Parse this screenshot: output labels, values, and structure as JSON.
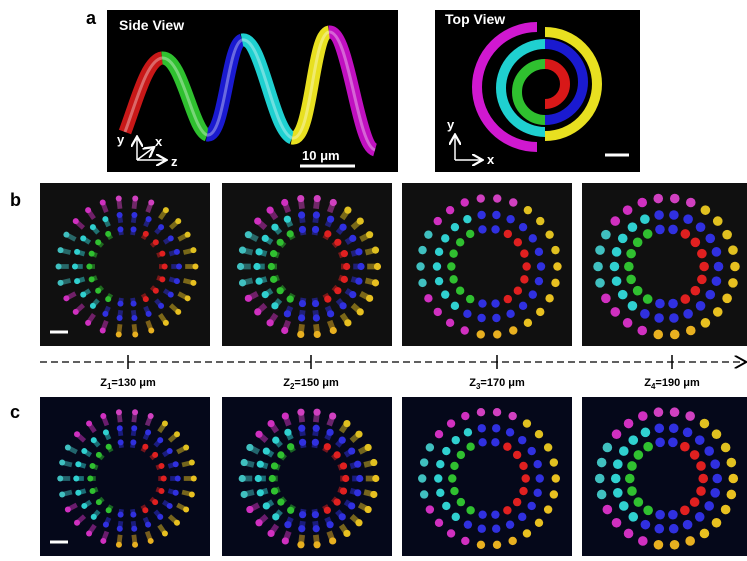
{
  "panels": {
    "a": {
      "label": "a",
      "side_view": {
        "title": "Side View",
        "axes": {
          "y": "y",
          "x": "x",
          "z": "z"
        },
        "scale_bar": "10 μm"
      },
      "top_view": {
        "title": "Top View",
        "axes": {
          "y": "y",
          "x": "x"
        }
      }
    },
    "b": {
      "label": "b"
    },
    "c": {
      "label": "c"
    }
  },
  "depth_axis": {
    "positions": [
      {
        "symbol": "Z",
        "sub": "1",
        "value": "=130 μm"
      },
      {
        "symbol": "Z",
        "sub": "2",
        "value": "=150 μm"
      },
      {
        "symbol": "Z",
        "sub": "3",
        "value": "=170 μm"
      },
      {
        "symbol": "Z",
        "sub": "4",
        "value": "=190 μm"
      }
    ]
  }
}
